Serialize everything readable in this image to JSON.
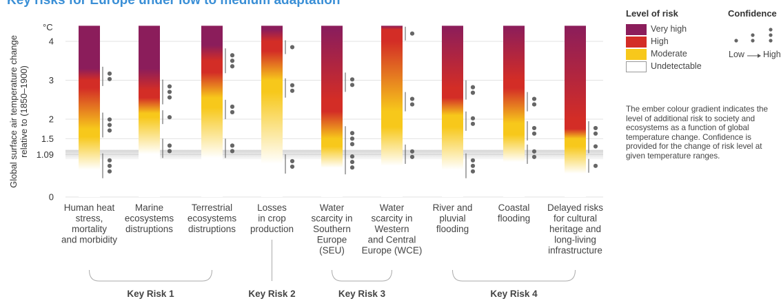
{
  "title": "Key risks for Europe under low to medium adaptation",
  "colors": {
    "undetectable": "#ffffff",
    "moderate": "#f7c81b",
    "high": "#d32d26",
    "very_high": "#8b1d5b",
    "band": "#cfcfcf",
    "title": "#3a8fd6"
  },
  "chart_data": {
    "type": "ember",
    "ylabel": "Global surface air temperature change relative to (1850–1900)",
    "yunit": "°C",
    "ylim": [
      0,
      4.4
    ],
    "yticks": [
      {
        "value": 0,
        "label": "0"
      },
      {
        "value": 1.09,
        "label": "1.09"
      },
      {
        "value": 1.5,
        "label": "1.5"
      },
      {
        "value": 2,
        "label": "2"
      },
      {
        "value": 3,
        "label": "3"
      },
      {
        "value": 4,
        "label": "4"
      }
    ],
    "present_day_band": [
      0.97,
      1.21
    ],
    "categories": [
      {
        "label": [
          "Human heat",
          "stress,",
          "mortality",
          "and morbidity"
        ],
        "transitions": [
          [
            0.7,
            1.55,
            1.75,
            2.8,
            3.0,
            3.3,
            3.6
          ]
        ],
        "confidence": [
          {
            "y": 0.8,
            "dots": 3
          },
          {
            "y": 1.85,
            "dots": 3
          },
          {
            "y": 3.1,
            "dots": 2
          }
        ]
      },
      {
        "label": [
          "Marine",
          "ecosystems",
          "distruptions"
        ],
        "transitions": [
          [
            1.1,
            2.05,
            2.15,
            2.55,
            2.75,
            3.3,
            3.6
          ]
        ],
        "confidence": [
          {
            "y": 1.25,
            "dots": 2
          },
          {
            "y": 2.05,
            "dots": 1
          },
          {
            "y": 2.7,
            "dots": 3
          }
        ]
      },
      {
        "label": [
          "Terrestrial",
          "ecosystems",
          "distruptions"
        ],
        "transitions": [
          [
            1.0,
            2.3,
            2.55,
            3.2,
            3.5,
            3.9,
            4.3
          ]
        ],
        "confidence": [
          {
            "y": 1.25,
            "dots": 2
          },
          {
            "y": 2.25,
            "dots": 2
          },
          {
            "y": 3.5,
            "dots": 3
          }
        ]
      },
      {
        "label": [
          "Losses",
          "in crop",
          "production"
        ],
        "transitions": [
          [
            0.85,
            2.7,
            3.0,
            3.75,
            4.0,
            4.3,
            4.4
          ]
        ],
        "confidence": [
          {
            "y": 0.85,
            "dots": 2
          },
          {
            "y": 2.8,
            "dots": 2
          },
          {
            "y": 3.85,
            "dots": 1
          }
        ]
      },
      {
        "label": [
          "Water",
          "scarcity in",
          "Southern",
          "Europe",
          "(SEU)"
        ],
        "transitions": [
          [
            0.75,
            1.3,
            1.5,
            2.2,
            2.5,
            4.3,
            4.4
          ]
        ],
        "confidence": [
          {
            "y": 0.9,
            "dots": 3
          },
          {
            "y": 1.5,
            "dots": 3
          },
          {
            "y": 2.95,
            "dots": 2
          }
        ]
      },
      {
        "label": [
          "Water",
          "scarcity in",
          "Western",
          "and Central",
          "Europe (WCE)"
        ],
        "transitions": [
          [
            0.8,
            1.8,
            2.2,
            4.0,
            4.3,
            4.4,
            4.4
          ]
        ],
        "confidence": [
          {
            "y": 1.1,
            "dots": 2
          },
          {
            "y": 2.45,
            "dots": 2
          },
          {
            "y": 4.2,
            "dots": 1
          }
        ]
      },
      {
        "label": [
          "River and",
          "pluvial",
          "flooding"
        ],
        "transitions": [
          [
            0.7,
            1.8,
            2.1,
            2.55,
            2.8,
            4.4,
            4.4
          ]
        ],
        "confidence": [
          {
            "y": 0.8,
            "dots": 3
          },
          {
            "y": 1.95,
            "dots": 2
          },
          {
            "y": 2.75,
            "dots": 2
          }
        ]
      },
      {
        "label": [
          "Coastal",
          "flooding"
        ],
        "transitions": [
          [
            0.9,
            1.6,
            1.9,
            2.8,
            3.0,
            4.4,
            4.4
          ]
        ],
        "confidence": [
          {
            "y": 1.1,
            "dots": 2
          },
          {
            "y": 1.7,
            "dots": 2
          },
          {
            "y": 2.45,
            "dots": 2
          }
        ]
      },
      {
        "label": [
          "Delayed risks",
          "for cultural",
          "heritage and",
          "long-living",
          "infrastructure"
        ],
        "transitions": [
          [
            0.6,
            1.3,
            1.5,
            1.75,
            2.0,
            4.4,
            4.4
          ]
        ],
        "confidence": [
          {
            "y": 0.8,
            "dots": 1
          },
          {
            "y": 1.3,
            "dots": 1
          },
          {
            "y": 1.7,
            "dots": 2
          }
        ]
      }
    ],
    "groups": [
      {
        "label": "Key Risk 1",
        "from": 0,
        "to": 2
      },
      {
        "label": "Key Risk 2",
        "from": 3,
        "to": 3
      },
      {
        "label": "Key Risk 3",
        "from": 4,
        "to": 5
      },
      {
        "label": "Key Risk 4",
        "from": 6,
        "to": 8
      }
    ]
  },
  "legend": {
    "level_title": "Level of risk",
    "items": [
      {
        "key": "very_high",
        "label": "Very high"
      },
      {
        "key": "high",
        "label": "High"
      },
      {
        "key": "moderate",
        "label": "Moderate"
      },
      {
        "key": "undetectable",
        "label": "Undetectable"
      }
    ],
    "confidence_title": "Confidence",
    "confidence_low": "Low",
    "confidence_high": "High",
    "note": "The ember colour gradient indicates the level of additional risk to society and ecosystems as a function of global temperature change. Confidence is provided for the change of risk level at given temperature ranges."
  }
}
